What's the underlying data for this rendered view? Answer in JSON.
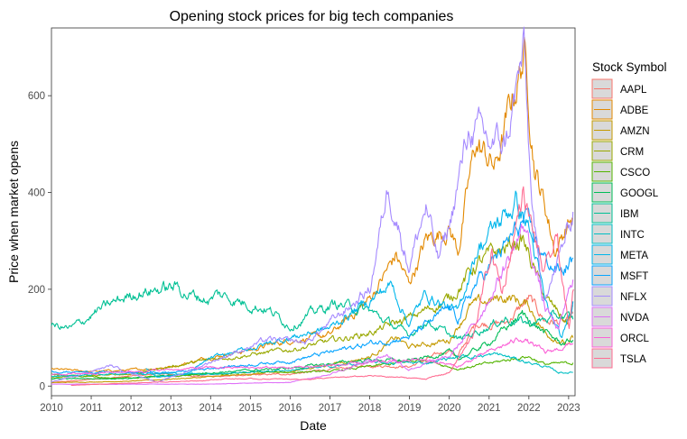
{
  "chart_data": {
    "type": "line",
    "title": "Opening stock prices for big tech companies",
    "xlabel": "Date",
    "ylabel": "Price when market opens",
    "xlim": [
      "2010-01-01",
      "2023-03-01"
    ],
    "ylim": [
      -20,
      740
    ],
    "x_ticks": [
      "2010",
      "2011",
      "2012",
      "2013",
      "2014",
      "2015",
      "2016",
      "2017",
      "2018",
      "2019",
      "2020",
      "2021",
      "2022",
      "2023"
    ],
    "y_ticks": [
      0,
      200,
      400,
      600
    ],
    "grid": false,
    "legend_position": "right",
    "legend_title": "Stock Symbol",
    "series": [
      {
        "name": "AAPL",
        "color": "#F8766D",
        "points": [
          [
            "2010-01-01",
            7
          ],
          [
            "2012-09-01",
            25
          ],
          [
            "2014-01-01",
            20
          ],
          [
            "2016-01-01",
            25
          ],
          [
            "2018-01-01",
            43
          ],
          [
            "2019-01-01",
            40
          ],
          [
            "2020-01-01",
            75
          ],
          [
            "2020-03-20",
            60
          ],
          [
            "2020-09-01",
            130
          ],
          [
            "2021-06-01",
            130
          ],
          [
            "2022-01-01",
            180
          ],
          [
            "2022-06-01",
            135
          ],
          [
            "2023-01-01",
            130
          ],
          [
            "2023-02-10",
            150
          ]
        ]
      },
      {
        "name": "ADBE",
        "color": "#E38900",
        "points": [
          [
            "2010-01-01",
            35
          ],
          [
            "2011-01-01",
            30
          ],
          [
            "2012-01-01",
            33
          ],
          [
            "2013-01-01",
            40
          ],
          [
            "2014-01-01",
            60
          ],
          [
            "2015-01-01",
            75
          ],
          [
            "2016-01-01",
            95
          ],
          [
            "2017-01-01",
            105
          ],
          [
            "2018-01-01",
            180
          ],
          [
            "2018-09-01",
            270
          ],
          [
            "2018-12-25",
            210
          ],
          [
            "2019-06-01",
            300
          ],
          [
            "2020-01-01",
            330
          ],
          [
            "2020-03-20",
            280
          ],
          [
            "2020-09-01",
            500
          ],
          [
            "2021-03-01",
            450
          ],
          [
            "2021-11-20",
            690
          ],
          [
            "2022-03-01",
            450
          ],
          [
            "2022-06-01",
            370
          ],
          [
            "2022-09-01",
            280
          ],
          [
            "2023-01-01",
            340
          ],
          [
            "2023-02-10",
            345
          ]
        ]
      },
      {
        "name": "AMZN",
        "color": "#C49A00",
        "points": [
          [
            "2010-01-01",
            7
          ],
          [
            "2012-01-01",
            10
          ],
          [
            "2014-01-01",
            19
          ],
          [
            "2016-01-01",
            30
          ],
          [
            "2018-01-01",
            60
          ],
          [
            "2018-09-01",
            100
          ],
          [
            "2019-01-01",
            80
          ],
          [
            "2020-01-01",
            95
          ],
          [
            "2020-07-10",
            165
          ],
          [
            "2021-07-01",
            185
          ],
          [
            "2022-01-01",
            165
          ],
          [
            "2022-06-01",
            110
          ],
          [
            "2023-01-01",
            85
          ],
          [
            "2023-02-10",
            100
          ]
        ]
      },
      {
        "name": "CRM",
        "color": "#99A800",
        "points": [
          [
            "2010-01-01",
            17
          ],
          [
            "2012-01-01",
            25
          ],
          [
            "2014-01-01",
            55
          ],
          [
            "2016-01-01",
            75
          ],
          [
            "2018-01-01",
            110
          ],
          [
            "2019-01-01",
            140
          ],
          [
            "2020-01-01",
            180
          ],
          [
            "2020-09-01",
            250
          ],
          [
            "2021-11-01",
            305
          ],
          [
            "2022-06-01",
            180
          ],
          [
            "2022-12-20",
            130
          ],
          [
            "2023-02-10",
            165
          ]
        ]
      },
      {
        "name": "CSCO",
        "color": "#53B400",
        "points": [
          [
            "2010-01-01",
            24
          ],
          [
            "2011-06-01",
            16
          ],
          [
            "2013-01-01",
            20
          ],
          [
            "2015-01-01",
            28
          ],
          [
            "2017-01-01",
            30
          ],
          [
            "2018-01-01",
            40
          ],
          [
            "2019-06-01",
            55
          ],
          [
            "2020-03-20",
            35
          ],
          [
            "2021-06-01",
            53
          ],
          [
            "2021-12-20",
            62
          ],
          [
            "2022-06-01",
            45
          ],
          [
            "2023-01-01",
            47
          ],
          [
            "2023-02-10",
            48
          ]
        ]
      },
      {
        "name": "GOOGL",
        "color": "#00BC56",
        "points": [
          [
            "2010-01-01",
            15
          ],
          [
            "2012-01-01",
            16
          ],
          [
            "2014-01-01",
            28
          ],
          [
            "2016-01-01",
            37
          ],
          [
            "2018-01-01",
            55
          ],
          [
            "2019-01-01",
            52
          ],
          [
            "2020-01-01",
            70
          ],
          [
            "2020-03-20",
            55
          ],
          [
            "2021-01-01",
            90
          ],
          [
            "2021-11-01",
            148
          ],
          [
            "2022-06-01",
            110
          ],
          [
            "2022-11-01",
            88
          ],
          [
            "2023-02-10",
            95
          ]
        ]
      },
      {
        "name": "IBM",
        "color": "#00C094",
        "points": [
          [
            "2010-01-01",
            125
          ],
          [
            "2010-07-01",
            118
          ],
          [
            "2011-03-01",
            155
          ],
          [
            "2012-03-01",
            195
          ],
          [
            "2012-09-01",
            200
          ],
          [
            "2013-03-01",
            205
          ],
          [
            "2013-06-01",
            190
          ],
          [
            "2014-01-01",
            178
          ],
          [
            "2014-03-01",
            190
          ],
          [
            "2014-10-01",
            175
          ],
          [
            "2015-06-01",
            160
          ],
          [
            "2016-01-01",
            125
          ],
          [
            "2016-09-01",
            155
          ],
          [
            "2017-03-01",
            170
          ],
          [
            "2018-01-01",
            155
          ],
          [
            "2018-12-25",
            105
          ],
          [
            "2019-06-01",
            135
          ],
          [
            "2020-03-20",
            95
          ],
          [
            "2021-06-01",
            140
          ],
          [
            "2022-01-01",
            130
          ],
          [
            "2022-11-01",
            145
          ],
          [
            "2023-02-10",
            138
          ]
        ]
      },
      {
        "name": "INTC",
        "color": "#00BFC4",
        "points": [
          [
            "2010-01-01",
            20
          ],
          [
            "2012-01-01",
            27
          ],
          [
            "2014-01-01",
            25
          ],
          [
            "2016-01-01",
            33
          ],
          [
            "2018-01-01",
            48
          ],
          [
            "2019-06-01",
            48
          ],
          [
            "2020-03-01",
            60
          ],
          [
            "2021-04-01",
            65
          ],
          [
            "2022-06-01",
            40
          ],
          [
            "2022-10-01",
            28
          ],
          [
            "2023-02-10",
            28
          ]
        ]
      },
      {
        "name": "META",
        "color": "#00B6EB",
        "points": [
          [
            "2012-05-18",
            38
          ],
          [
            "2012-09-01",
            19
          ],
          [
            "2013-06-01",
            25
          ],
          [
            "2014-01-01",
            57
          ],
          [
            "2015-01-01",
            78
          ],
          [
            "2016-01-01",
            100
          ],
          [
            "2017-01-01",
            120
          ],
          [
            "2018-07-20",
            210
          ],
          [
            "2018-12-25",
            130
          ],
          [
            "2019-06-01",
            190
          ],
          [
            "2020-03-20",
            150
          ],
          [
            "2020-09-01",
            280
          ],
          [
            "2021-09-01",
            380
          ],
          [
            "2022-01-01",
            330
          ],
          [
            "2022-06-01",
            170
          ],
          [
            "2022-11-01",
            95
          ],
          [
            "2023-02-10",
            175
          ]
        ]
      },
      {
        "name": "MSFT",
        "color": "#06A4FF",
        "points": [
          [
            "2010-01-01",
            30
          ],
          [
            "2012-01-01",
            28
          ],
          [
            "2013-01-01",
            28
          ],
          [
            "2014-01-01",
            37
          ],
          [
            "2016-01-01",
            52
          ],
          [
            "2018-01-01",
            88
          ],
          [
            "2019-01-01",
            102
          ],
          [
            "2020-01-01",
            160
          ],
          [
            "2020-03-20",
            140
          ],
          [
            "2020-09-01",
            210
          ],
          [
            "2021-11-20",
            340
          ],
          [
            "2022-06-01",
            260
          ],
          [
            "2022-11-01",
            235
          ],
          [
            "2023-02-10",
            265
          ]
        ]
      },
      {
        "name": "NFLX",
        "color": "#A58AFF",
        "points": [
          [
            "2010-01-01",
            8
          ],
          [
            "2011-07-01",
            42
          ],
          [
            "2012-09-01",
            8
          ],
          [
            "2013-06-01",
            30
          ],
          [
            "2014-01-01",
            50
          ],
          [
            "2015-06-01",
            95
          ],
          [
            "2016-06-01",
            90
          ],
          [
            "2017-01-01",
            130
          ],
          [
            "2018-01-01",
            200
          ],
          [
            "2018-06-20",
            415
          ],
          [
            "2018-12-25",
            250
          ],
          [
            "2019-06-01",
            370
          ],
          [
            "2019-09-20",
            260
          ],
          [
            "2020-01-01",
            330
          ],
          [
            "2020-07-10",
            540
          ],
          [
            "2021-01-01",
            500
          ],
          [
            "2021-06-01",
            500
          ],
          [
            "2021-11-17",
            690
          ],
          [
            "2022-01-20",
            400
          ],
          [
            "2022-05-01",
            180
          ],
          [
            "2022-09-01",
            240
          ],
          [
            "2023-01-20",
            340
          ],
          [
            "2023-02-10",
            360
          ]
        ]
      },
      {
        "name": "NVDA",
        "color": "#DF70F8",
        "points": [
          [
            "2010-01-01",
            4
          ],
          [
            "2014-01-01",
            4
          ],
          [
            "2016-01-01",
            8
          ],
          [
            "2017-01-01",
            25
          ],
          [
            "2018-06-01",
            65
          ],
          [
            "2018-12-25",
            35
          ],
          [
            "2020-01-01",
            60
          ],
          [
            "2020-09-01",
            130
          ],
          [
            "2021-11-25",
            330
          ],
          [
            "2022-06-01",
            160
          ],
          [
            "2022-10-01",
            115
          ],
          [
            "2023-02-10",
            220
          ]
        ]
      },
      {
        "name": "ORCL",
        "color": "#FB61D7",
        "points": [
          [
            "2010-01-01",
            24
          ],
          [
            "2012-01-01",
            30
          ],
          [
            "2014-01-01",
            38
          ],
          [
            "2016-01-01",
            38
          ],
          [
            "2018-01-01",
            47
          ],
          [
            "2019-06-01",
            55
          ],
          [
            "2020-03-20",
            40
          ],
          [
            "2020-09-01",
            58
          ],
          [
            "2021-11-01",
            100
          ],
          [
            "2022-06-01",
            68
          ],
          [
            "2022-12-01",
            82
          ],
          [
            "2023-02-10",
            88
          ]
        ]
      },
      {
        "name": "TSLA",
        "color": "#FF6C91",
        "points": [
          [
            "2010-06-29",
            1.5
          ],
          [
            "2013-09-01",
            11
          ],
          [
            "2014-06-01",
            15
          ],
          [
            "2016-06-01",
            14
          ],
          [
            "2018-01-01",
            21
          ],
          [
            "2019-06-01",
            15
          ],
          [
            "2020-01-01",
            28
          ],
          [
            "2020-08-01",
            100
          ],
          [
            "2021-01-27",
            280
          ],
          [
            "2021-05-01",
            190
          ],
          [
            "2021-11-04",
            400
          ],
          [
            "2022-01-01",
            350
          ],
          [
            "2022-05-20",
            230
          ],
          [
            "2022-09-20",
            300
          ],
          [
            "2023-01-05",
            110
          ],
          [
            "2023-02-15",
            200
          ]
        ]
      }
    ]
  }
}
